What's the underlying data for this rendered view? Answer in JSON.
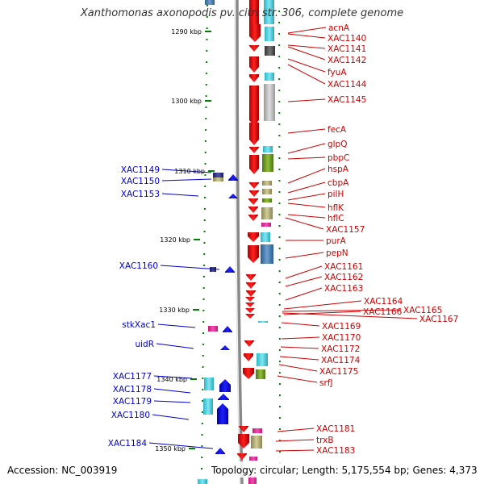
{
  "title": "Xanthomonas axonopodis pv. citri str. 306, complete genome",
  "ruler": [
    {
      "label": "1290 kbp"
    },
    {
      "label": "1300 kbp"
    },
    {
      "label": "1310 kbp"
    },
    {
      "label": "1320 kbp"
    },
    {
      "label": "1330 kbp"
    },
    {
      "label": "1340 kbp"
    },
    {
      "label": "1350 kbp"
    }
  ],
  "right_genes": [
    "acnA",
    "XAC1140",
    "XAC1141",
    "XAC1142",
    "fyuA",
    "XAC1144",
    "XAC1145",
    "fecA",
    "glpQ",
    "pbpC",
    "hspA",
    "cbpA",
    "pilH",
    "hflK",
    "hflC",
    "XAC1157",
    "purA",
    "pepN",
    "XAC1161",
    "XAC1162",
    "XAC1163",
    "XAC1164",
    "XAC1165",
    "XAC1166",
    "XAC1167",
    "XAC1169",
    "XAC1170",
    "XAC1172",
    "XAC1174",
    "XAC1175",
    "srfJ",
    "XAC1181",
    "trxB",
    "XAC1183"
  ],
  "left_genes": [
    "XAC1149",
    "XAC1150",
    "XAC1153",
    "XAC1160",
    "stkXac1",
    "uidR",
    "XAC1177",
    "XAC1178",
    "XAC1179",
    "XAC1180",
    "XAC1184"
  ],
  "footer": {
    "accession": "Accession: NC_003919",
    "stats": "Topology: circular; Length: 5,175,554 bp; Genes: 4,373"
  },
  "colors": {
    "forward_gene": "#ff0000",
    "reverse_gene": "#0000ff",
    "forward_label": "#cc0000",
    "reverse_label": "#0000cc",
    "backbone": "#888888",
    "tick": "#008000"
  }
}
